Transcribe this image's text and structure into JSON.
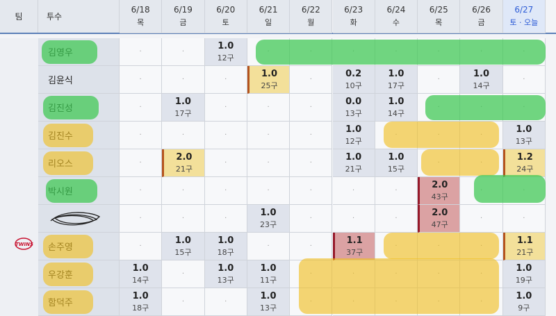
{
  "table": {
    "headers": {
      "team": "팀",
      "pitcher": "투수"
    },
    "columns": [
      {
        "date": "6/18",
        "day": "목"
      },
      {
        "date": "6/19",
        "day": "금"
      },
      {
        "date": "6/20",
        "day": "토"
      },
      {
        "date": "6/21",
        "day": "일"
      },
      {
        "date": "6/22",
        "day": "월"
      },
      {
        "date": "6/23",
        "day": "화"
      },
      {
        "date": "6/24",
        "day": "수"
      },
      {
        "date": "6/25",
        "day": "목"
      },
      {
        "date": "6/26",
        "day": "금"
      },
      {
        "date": "6/27",
        "day": "토 · 오늘",
        "today": true
      }
    ],
    "team_logo": "TWINS",
    "rows": [
      {
        "pitcher": "김영우",
        "cells": [
          "·",
          "·",
          {
            "ip": "1.0",
            "pitches": "12구"
          },
          "·",
          "·",
          "·",
          "·",
          "·",
          "·",
          "·"
        ]
      },
      {
        "pitcher": "김윤식",
        "cells": [
          "·",
          "·",
          "·",
          {
            "ip": "1.0",
            "pitches": "25구",
            "level": "warn"
          },
          "·",
          {
            "ip": "0.2",
            "pitches": "10구"
          },
          {
            "ip": "1.0",
            "pitches": "17구"
          },
          "·",
          {
            "ip": "1.0",
            "pitches": "14구"
          },
          "·"
        ]
      },
      {
        "pitcher": "김진성",
        "cells": [
          "·",
          {
            "ip": "1.0",
            "pitches": "17구"
          },
          "·",
          "·",
          "·",
          {
            "ip": "0.0",
            "pitches": "13구"
          },
          {
            "ip": "1.0",
            "pitches": "14구"
          },
          "·",
          "·",
          "·"
        ]
      },
      {
        "pitcher": "김진수",
        "cells": [
          "·",
          "·",
          "·",
          "·",
          "·",
          {
            "ip": "1.0",
            "pitches": "12구"
          },
          "·",
          "·",
          "·",
          {
            "ip": "1.0",
            "pitches": "13구"
          }
        ]
      },
      {
        "pitcher": "리오스",
        "cells": [
          "·",
          {
            "ip": "2.0",
            "pitches": "21구",
            "level": "warn"
          },
          "·",
          "·",
          "·",
          {
            "ip": "1.0",
            "pitches": "21구"
          },
          {
            "ip": "1.0",
            "pitches": "15구"
          },
          "·",
          "·",
          {
            "ip": "1.2",
            "pitches": "24구",
            "level": "warn"
          }
        ]
      },
      {
        "pitcher": "박시원",
        "cells": [
          "·",
          "·",
          "·",
          "·",
          "·",
          "·",
          "·",
          {
            "ip": "2.0",
            "pitches": "43구",
            "level": "danger"
          },
          "·",
          "·"
        ]
      },
      {
        "pitcher": null,
        "cells": [
          "·",
          "·",
          "·",
          {
            "ip": "1.0",
            "pitches": "23구"
          },
          "·",
          "·",
          "·",
          {
            "ip": "2.0",
            "pitches": "47구",
            "level": "danger"
          },
          "·",
          "·"
        ]
      },
      {
        "pitcher": "손주영",
        "cells": [
          "·",
          {
            "ip": "1.0",
            "pitches": "15구"
          },
          {
            "ip": "1.0",
            "pitches": "18구"
          },
          "·",
          "·",
          {
            "ip": "1.1",
            "pitches": "37구",
            "level": "danger"
          },
          "·",
          "·",
          "·",
          {
            "ip": "1.1",
            "pitches": "21구",
            "level": "warn"
          }
        ]
      },
      {
        "pitcher": "우강훈",
        "cells": [
          {
            "ip": "1.0",
            "pitches": "14구"
          },
          "·",
          {
            "ip": "1.0",
            "pitches": "13구"
          },
          {
            "ip": "1.0",
            "pitches": "11구"
          },
          "·",
          "·",
          "·",
          "·",
          "·",
          {
            "ip": "1.0",
            "pitches": "19구"
          }
        ]
      },
      {
        "pitcher": "함덕주",
        "cells": [
          {
            "ip": "1.0",
            "pitches": "18구"
          },
          "·",
          "·",
          {
            "ip": "1.0",
            "pitches": "13구"
          },
          "·",
          "·",
          "·",
          "·",
          "·",
          {
            "ip": "1.0",
            "pitches": "9구"
          }
        ]
      }
    ]
  }
}
